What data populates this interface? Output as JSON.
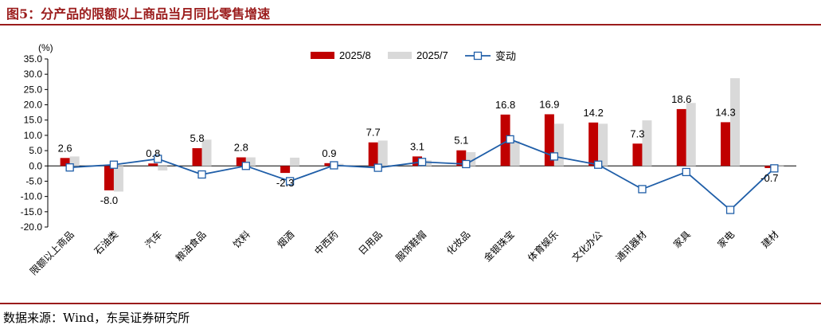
{
  "header": {
    "title": "图5：分产品的限额以上商品当月同比零售增速"
  },
  "footer": {
    "source": "数据来源：Wind，东吴证券研究所"
  },
  "chart_data": {
    "type": "bar",
    "unit_label": "(%)",
    "categories": [
      "限额以上商品",
      "石油类",
      "汽车",
      "粮油食品",
      "饮料",
      "烟酒",
      "中西药",
      "日用品",
      "服饰鞋帽",
      "化妆品",
      "金银珠宝",
      "体育娱乐",
      "文化办公",
      "通讯器材",
      "家具",
      "家电",
      "建材"
    ],
    "series": [
      {
        "name": "2025/8",
        "kind": "bar",
        "color": "#c00000",
        "values": [
          2.6,
          -8.0,
          0.8,
          5.8,
          2.8,
          -2.3,
          0.9,
          7.7,
          3.1,
          5.1,
          16.8,
          16.9,
          14.2,
          7.3,
          18.6,
          14.3,
          -0.7
        ]
      },
      {
        "name": "2025/7",
        "kind": "bar",
        "color": "#d9d9d9",
        "values": [
          3.1,
          -8.4,
          -1.5,
          8.6,
          2.8,
          2.7,
          0.7,
          8.3,
          1.8,
          4.5,
          8.1,
          13.8,
          13.8,
          14.9,
          20.6,
          28.7,
          0.1
        ]
      },
      {
        "name": "变动",
        "kind": "line",
        "color": "#1f5ea8",
        "values": [
          -0.5,
          0.4,
          2.3,
          -2.8,
          0.0,
          -5.0,
          0.2,
          -0.6,
          1.3,
          0.6,
          8.7,
          3.1,
          0.4,
          -7.6,
          -2.0,
          -14.4,
          -0.8
        ]
      }
    ],
    "data_labels": [
      "2.6",
      "-8.0",
      "0.8",
      "5.8",
      "2.8",
      "-2.3",
      "0.9",
      "7.7",
      "3.1",
      "5.1",
      "16.8",
      "16.9",
      "14.2",
      "7.3",
      "18.6",
      "14.3",
      "-0.7"
    ],
    "ylim": [
      -20.0,
      35.0
    ],
    "yticks": [
      "35.0",
      "30.0",
      "25.0",
      "20.0",
      "15.0",
      "10.0",
      "5.0",
      "0.0",
      "-5.0",
      "-10.0",
      "-15.0",
      "-20.0"
    ],
    "grid": false,
    "legend_position": "top"
  }
}
